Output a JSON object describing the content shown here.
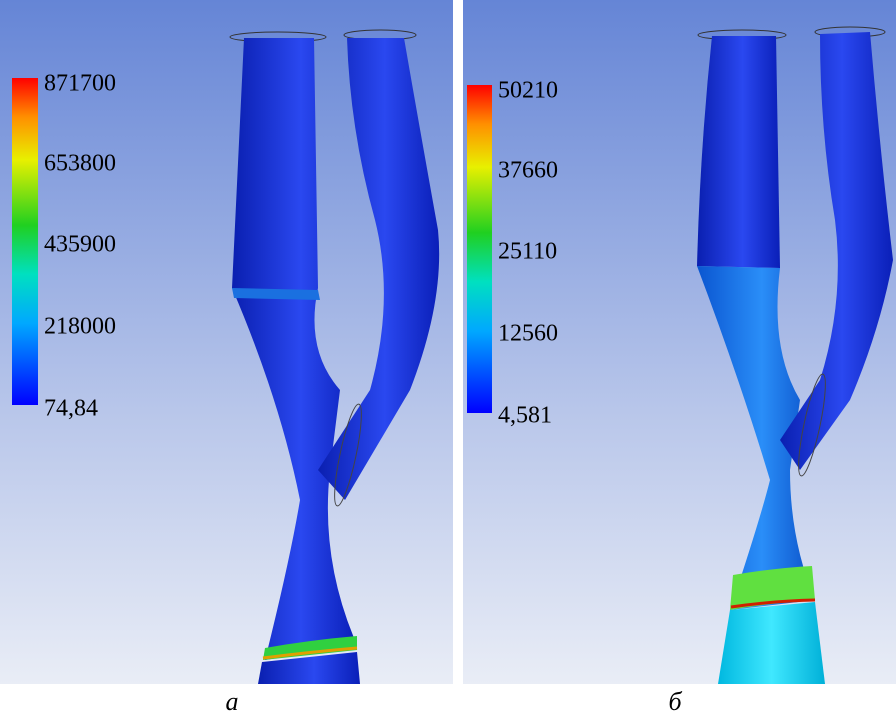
{
  "panels": [
    {
      "legend_labels": [
        "871700",
        "653800",
        "435900",
        "218000",
        "74,84"
      ],
      "caption": "а"
    },
    {
      "legend_labels": [
        "50210",
        "37660",
        "25110",
        "12560",
        "4,581"
      ],
      "caption": "б"
    }
  ]
}
